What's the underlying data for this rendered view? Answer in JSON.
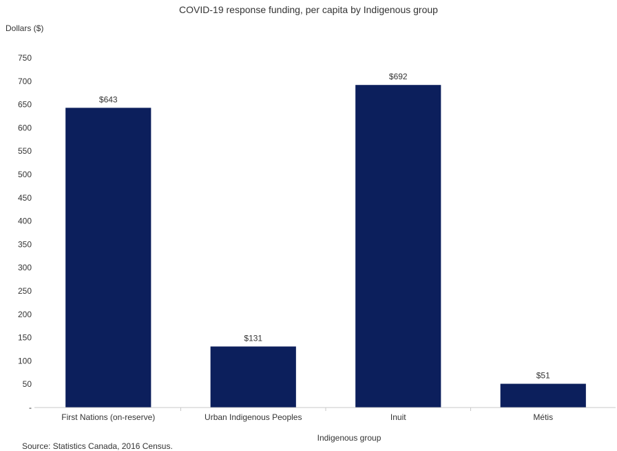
{
  "chart_data": {
    "type": "bar",
    "title": "COVID-19 response funding, per capita by Indigenous group",
    "ylabel": "Dollars ($)",
    "xlabel": "Indigenous group",
    "source": "Source: Statistics Canada, 2016 Census.",
    "categories": [
      "First Nations (on-reserve)",
      "Urban Indigenous Peoples",
      "Inuit",
      "Métis"
    ],
    "values": [
      643,
      131,
      692,
      51
    ],
    "data_labels": [
      "$643",
      "$131",
      "$692",
      "$51"
    ],
    "ylim": [
      0,
      750
    ],
    "yticks": [
      0,
      50,
      100,
      150,
      200,
      250,
      300,
      350,
      400,
      450,
      500,
      550,
      600,
      650,
      700,
      750
    ],
    "ytick_labels": [
      "-",
      "50",
      "100",
      "150",
      "200",
      "250",
      "300",
      "350",
      "400",
      "450",
      "500",
      "550",
      "600",
      "650",
      "700",
      "750"
    ],
    "grid": false,
    "legend": "none",
    "bar_color": "#0c1f5c"
  }
}
